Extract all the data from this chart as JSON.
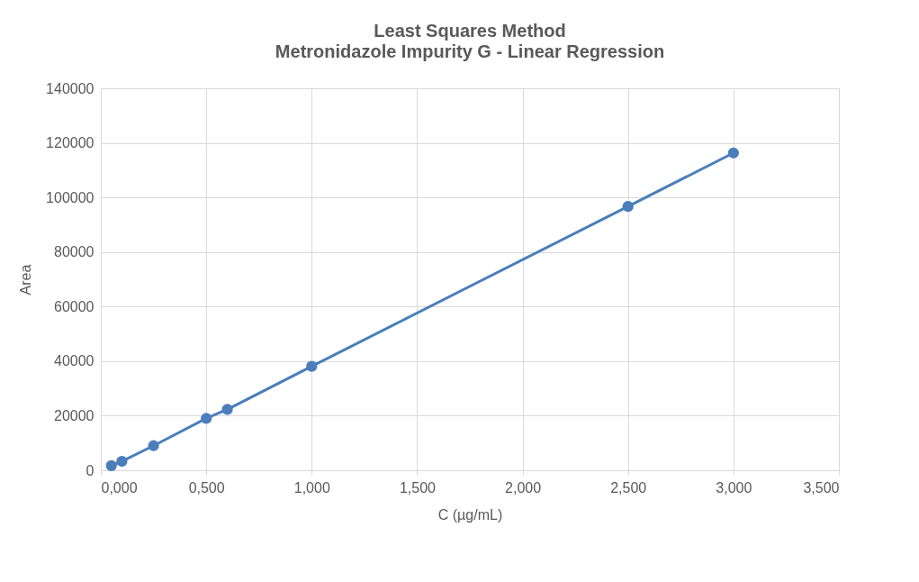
{
  "chart_data": {
    "type": "line",
    "title": "Least Squares Method",
    "subtitle": "Metronidazole  Impurity  G - Linear Regression",
    "xlabel": "C (µg/mL)",
    "ylabel": "Area",
    "x": [
      0.05,
      0.1,
      0.25,
      0.5,
      0.6,
      1.0,
      2.5,
      3.0
    ],
    "series": [
      {
        "color": "#4a7ebb",
        "values": [
          1700,
          3300,
          9000,
          19000,
          22300,
          38100,
          96700,
          116300
        ]
      }
    ],
    "xlim": [
      0,
      3.5
    ],
    "xticks": [
      {
        "value": 0,
        "label": "0,000"
      },
      {
        "value": 0.5,
        "label": "0,500"
      },
      {
        "value": 1,
        "label": "1,000"
      },
      {
        "value": 1.5,
        "label": "1,500"
      },
      {
        "value": 2,
        "label": "2,000"
      },
      {
        "value": 2.5,
        "label": "2,500"
      },
      {
        "value": 3,
        "label": "3,000"
      },
      {
        "value": 3.5,
        "label": "3,500"
      }
    ],
    "ylim": [
      0,
      140000
    ],
    "yticks": [
      0,
      20000,
      40000,
      60000,
      80000,
      100000,
      120000,
      140000
    ],
    "grid": true,
    "marker": "circle",
    "line_style": "solid"
  }
}
